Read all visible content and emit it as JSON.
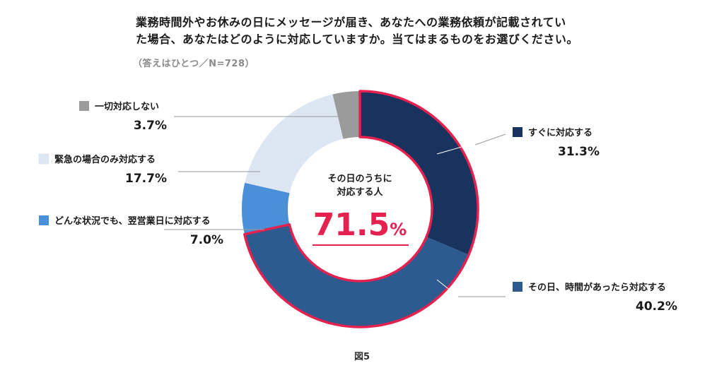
{
  "header": {
    "title_line1": "業務時間外やお休みの日にメッセージが届き、あなたへの業務依頼が記載されてい",
    "title_line2": "た場合、あなたはどのように対応していますか。当てはまるものをお選びください。",
    "note": "（答えはひとつ／N=728）"
  },
  "chart_data": {
    "type": "pie",
    "style": "donut",
    "categories": [
      "すぐに対応する",
      "その日、時間があったら対応する",
      "どんな状況でも、翌営業日に対応する",
      "緊急の場合のみ対応する",
      "一切対応しない"
    ],
    "values": [
      31.3,
      40.2,
      7.0,
      17.7,
      3.7
    ],
    "value_labels": [
      "31.3%",
      "40.2%",
      "7.0%",
      "17.7%",
      "3.7%"
    ],
    "colors": [
      "#17335e",
      "#2e5b8f",
      "#4a90d9",
      "#dde6f3",
      "#9b9b9b"
    ],
    "highlight_color": "#e4214f",
    "highlight_categories": [
      "すぐに対応する",
      "その日、時間があったら対応する"
    ],
    "center_label_line1": "その日のうちに",
    "center_label_line2": "対応する人",
    "center_value": "71.5",
    "center_unit": "%"
  },
  "figure_caption": "図5"
}
